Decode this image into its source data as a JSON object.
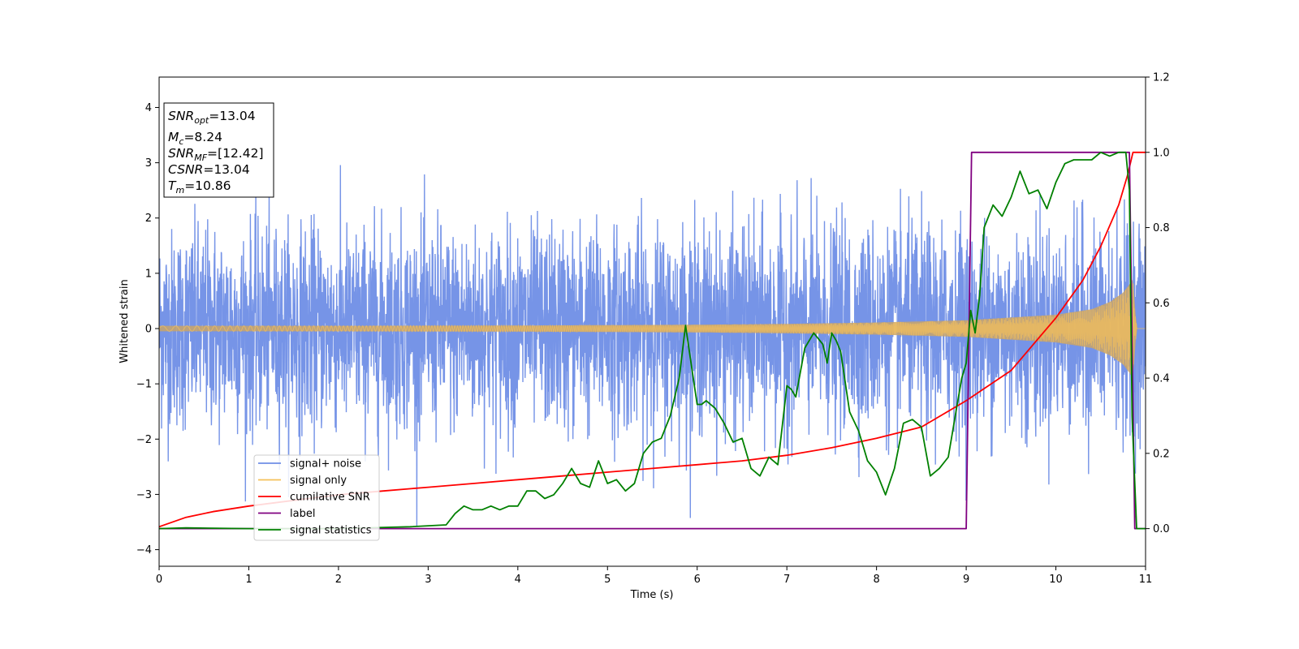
{
  "chart_data": {
    "type": "line",
    "xlabel": "Time (s)",
    "ylabel": "Whitened strain",
    "xlim": [
      0,
      11
    ],
    "ylim_left": [
      -4.3,
      4.55
    ],
    "ylim_right": [
      -0.1,
      1.2
    ],
    "x_ticks": [
      "0",
      "1",
      "2",
      "3",
      "4",
      "5",
      "6",
      "7",
      "8",
      "9",
      "10",
      "11"
    ],
    "y_ticks_left": [
      "−4",
      "−3",
      "−2",
      "−1",
      "0",
      "1",
      "2",
      "3",
      "4"
    ],
    "y_ticks_right": [
      "0.0",
      "0.2",
      "0.4",
      "0.6",
      "0.8",
      "1.0",
      "1.2"
    ],
    "grid": false,
    "legend": {
      "placement": "lower-left",
      "entries": [
        {
          "name": "signal+ noise",
          "color": "#6f8ee6"
        },
        {
          "name": "signal only",
          "color": "#f5c15a"
        },
        {
          "name": "cumilative SNR",
          "color": "#ff0000"
        },
        {
          "name": "label",
          "color": "#800080"
        },
        {
          "name": "signal statistics",
          "color": "#008000"
        }
      ]
    },
    "annotation": {
      "placement": "top-left",
      "lines": [
        {
          "base": "SNR",
          "sub": "opt",
          "value": "=13.04"
        },
        {
          "base": "M",
          "sub": "c",
          "value": "=8.24"
        },
        {
          "base": "SNR",
          "sub": "MF",
          "value": "=[12.42]"
        },
        {
          "base": "CSNR",
          "sub": "",
          "value": "=13.04"
        },
        {
          "base": "T",
          "sub": "m",
          "value": "=10.86"
        }
      ]
    },
    "series": [
      {
        "name": "signal+ noise",
        "axis": "left",
        "description_values": {
          "noise_std": 0.9,
          "x_range": [
            0,
            11
          ]
        }
      },
      {
        "name": "signal only",
        "axis": "left",
        "envelope": {
          "x": [
            0,
            2,
            4,
            6,
            7,
            8,
            9,
            10,
            10.4,
            10.6,
            10.75,
            10.82,
            10.86,
            10.9,
            11
          ],
          "amp": [
            0.05,
            0.05,
            0.055,
            0.07,
            0.085,
            0.11,
            0.15,
            0.25,
            0.35,
            0.48,
            0.65,
            0.8,
            0.9,
            0.0,
            0.0
          ]
        }
      },
      {
        "name": "cumilative SNR",
        "axis": "right",
        "x": [
          0,
          0.3,
          0.6,
          1,
          1.5,
          2,
          2.5,
          3,
          3.5,
          4,
          4.5,
          5,
          5.5,
          6,
          6.5,
          7,
          7.5,
          8,
          8.5,
          9,
          9.5,
          10,
          10.3,
          10.5,
          10.7,
          10.8,
          10.86,
          11
        ],
        "y": [
          0.005,
          0.03,
          0.045,
          0.06,
          0.075,
          0.09,
          0.1,
          0.11,
          0.12,
          0.13,
          0.14,
          0.15,
          0.16,
          0.17,
          0.18,
          0.195,
          0.215,
          0.24,
          0.27,
          0.34,
          0.42,
          0.56,
          0.66,
          0.75,
          0.86,
          0.94,
          1.0,
          1.0
        ]
      },
      {
        "name": "label",
        "axis": "right",
        "x": [
          0,
          9.0,
          9.06,
          10.82,
          10.88,
          11
        ],
        "y": [
          0,
          0,
          1,
          1,
          0,
          0
        ]
      },
      {
        "name": "signal statistics",
        "axis": "right",
        "x": [
          0,
          0.3,
          1,
          2,
          2.8,
          3.2,
          3.3,
          3.4,
          3.5,
          3.6,
          3.7,
          3.8,
          3.9,
          4.0,
          4.1,
          4.2,
          4.3,
          4.4,
          4.5,
          4.6,
          4.7,
          4.8,
          4.9,
          5.0,
          5.1,
          5.2,
          5.3,
          5.4,
          5.5,
          5.6,
          5.7,
          5.8,
          5.87,
          5.95,
          6.0,
          6.05,
          6.1,
          6.2,
          6.3,
          6.4,
          6.5,
          6.6,
          6.7,
          6.8,
          6.9,
          7.0,
          7.05,
          7.1,
          7.2,
          7.3,
          7.4,
          7.45,
          7.5,
          7.55,
          7.6,
          7.7,
          7.8,
          7.9,
          8.0,
          8.1,
          8.2,
          8.3,
          8.4,
          8.5,
          8.6,
          8.7,
          8.8,
          8.9,
          8.95,
          9.0,
          9.05,
          9.1,
          9.15,
          9.2,
          9.3,
          9.4,
          9.5,
          9.6,
          9.7,
          9.8,
          9.9,
          10.0,
          10.1,
          10.2,
          10.3,
          10.4,
          10.5,
          10.6,
          10.7,
          10.78,
          10.82,
          10.85,
          10.9,
          11
        ],
        "y": [
          0.0,
          0.002,
          0.0,
          0.0,
          0.005,
          0.01,
          0.04,
          0.06,
          0.05,
          0.05,
          0.06,
          0.05,
          0.06,
          0.06,
          0.1,
          0.1,
          0.08,
          0.09,
          0.12,
          0.16,
          0.12,
          0.11,
          0.18,
          0.12,
          0.13,
          0.1,
          0.12,
          0.2,
          0.23,
          0.24,
          0.3,
          0.4,
          0.54,
          0.41,
          0.33,
          0.33,
          0.34,
          0.32,
          0.28,
          0.23,
          0.24,
          0.16,
          0.14,
          0.19,
          0.17,
          0.38,
          0.37,
          0.35,
          0.48,
          0.52,
          0.49,
          0.44,
          0.52,
          0.5,
          0.47,
          0.31,
          0.26,
          0.18,
          0.15,
          0.09,
          0.16,
          0.28,
          0.29,
          0.27,
          0.14,
          0.16,
          0.19,
          0.33,
          0.4,
          0.44,
          0.58,
          0.52,
          0.62,
          0.8,
          0.86,
          0.83,
          0.88,
          0.95,
          0.89,
          0.9,
          0.85,
          0.92,
          0.97,
          0.98,
          0.98,
          0.98,
          1.0,
          0.99,
          1.0,
          1.0,
          0.9,
          0.3,
          0.0,
          0.0
        ]
      }
    ]
  }
}
